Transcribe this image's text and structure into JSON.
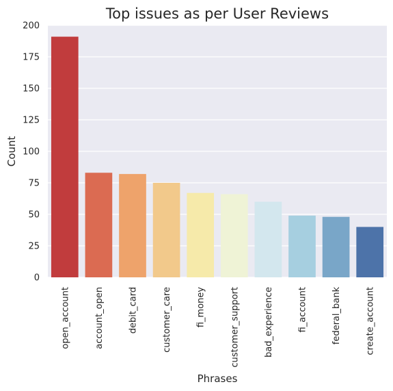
{
  "chart_data": {
    "type": "bar",
    "title": "Top issues as per User Reviews",
    "xlabel": "Phrases",
    "ylabel": "Count",
    "categories": [
      "open_account",
      "account_open",
      "debit_card",
      "customer_care",
      "fi_money",
      "customer_support",
      "bad_experience",
      "fi_account",
      "federal_bank",
      "create_account"
    ],
    "values": [
      191,
      83,
      82,
      75,
      67,
      66,
      60,
      49,
      48,
      40
    ],
    "colors": [
      "#c13c3d",
      "#db6b52",
      "#eea36b",
      "#f2c98b",
      "#f6eaaa",
      "#eff3d6",
      "#d3e7ee",
      "#a6cfe0",
      "#79a6c8",
      "#4d73a9"
    ],
    "ylim": [
      0,
      200
    ],
    "yticks": [
      0,
      25,
      50,
      75,
      100,
      125,
      150,
      175,
      200
    ],
    "grid": true,
    "legend": "none",
    "style": {
      "background": "#eaeaf2",
      "grid_color": "#ffffff"
    }
  }
}
